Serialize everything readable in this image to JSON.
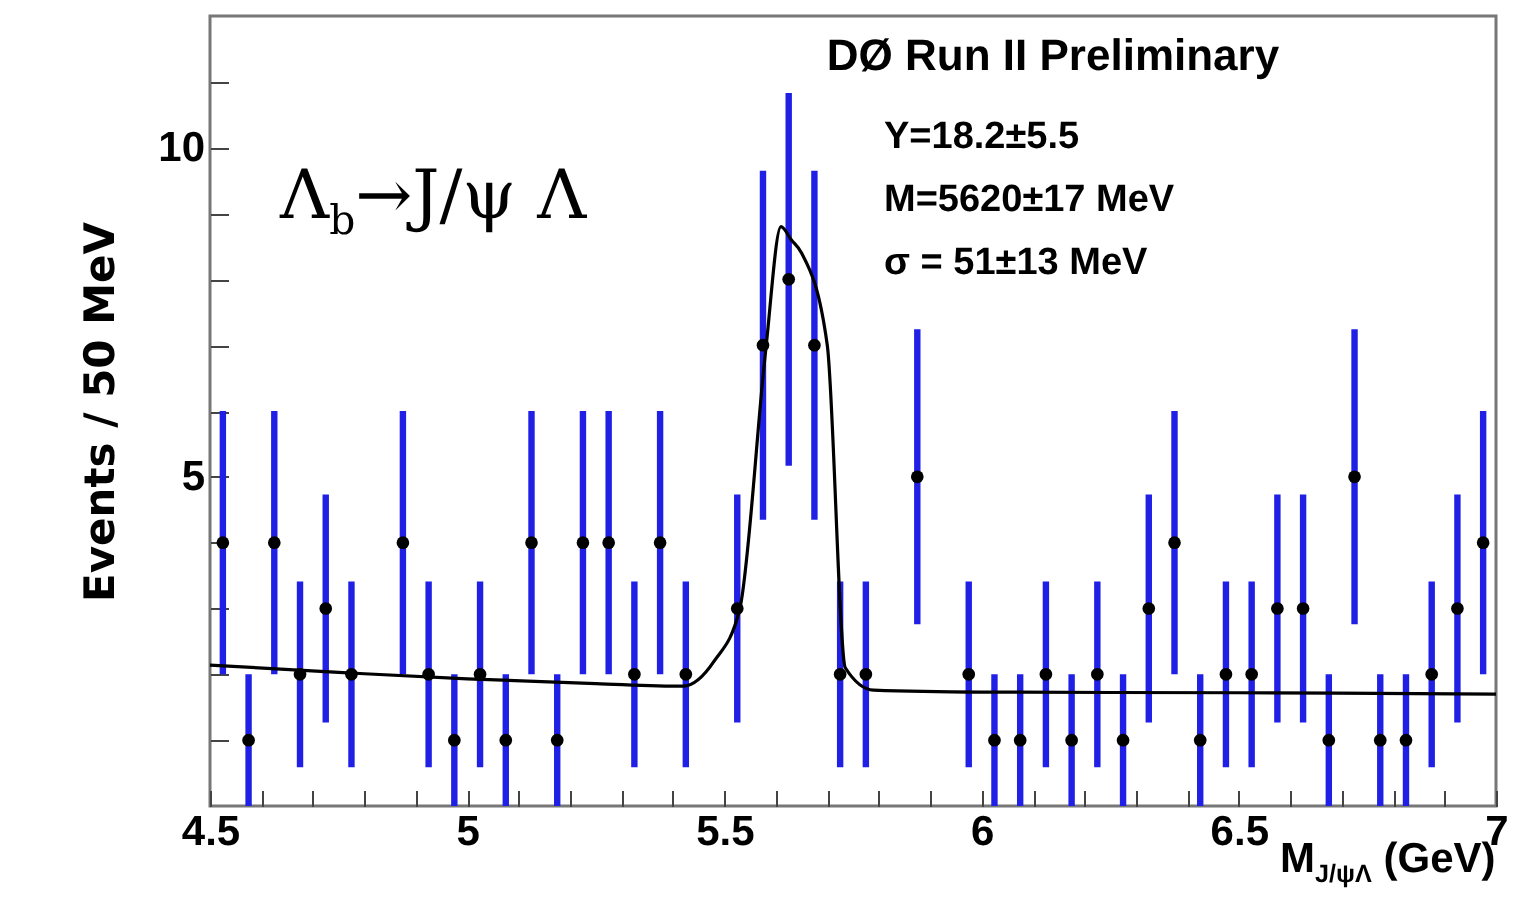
{
  "chart_data": {
    "type": "scatter",
    "title": "DØ Run II Preliminary",
    "xlabel": "M$_{J/ψΛ}$ (GeV)",
    "ylabel": "Events / 50 MeV",
    "annotations": [
      "Λ$_{b}$→J/ψ Λ",
      "Y=18.2±5.5",
      "M=5620±17 MeV",
      "σ = 51±13 MeV"
    ],
    "xlim": [
      4.5,
      7
    ],
    "ylim": [
      0,
      12
    ],
    "xticks": [
      4.5,
      {
        "value": 4.6,
        "label": null
      },
      {
        "value": 4.7,
        "label": null
      },
      {
        "value": 4.8,
        "label": null
      },
      {
        "value": 4.9,
        "label": null
      },
      5,
      {
        "value": 5.1,
        "label": null
      },
      {
        "value": 5.2,
        "label": null
      },
      {
        "value": 5.3,
        "label": null
      },
      {
        "value": 5.4,
        "label": null
      },
      5.5,
      {
        "value": 5.6,
        "label": null
      },
      {
        "value": 5.7,
        "label": null
      },
      {
        "value": 5.8,
        "label": null
      },
      {
        "value": 5.9,
        "label": null
      },
      6,
      {
        "value": 6.1,
        "label": null
      },
      {
        "value": 6.2,
        "label": null
      },
      {
        "value": 6.3,
        "label": null
      },
      {
        "value": 6.4,
        "label": null
      },
      6.5,
      {
        "value": 6.6,
        "label": null
      },
      {
        "value": 6.7,
        "label": null
      },
      {
        "value": 6.8,
        "label": null
      },
      {
        "value": 6.9,
        "label": null
      },
      7
    ],
    "yticks": [
      {
        "value": 1,
        "label": null
      },
      {
        "value": 2,
        "label": null
      },
      {
        "value": 3,
        "label": null
      },
      {
        "value": 4,
        "label": null
      },
      5,
      {
        "value": 6,
        "label": null
      },
      {
        "value": 7,
        "label": null
      },
      {
        "value": 8,
        "label": null
      },
      {
        "value": 9,
        "label": null
      },
      10,
      {
        "value": 11,
        "label": null
      }
    ],
    "series": [
      {
        "type": "scatter",
        "marker": "circle",
        "color": "#000000",
        "x": [
          4.525,
          4.575,
          4.625,
          4.675,
          4.725,
          4.775,
          4.825,
          4.875,
          4.925,
          4.975,
          5.025,
          5.075,
          5.125,
          5.175,
          5.225,
          5.275,
          5.325,
          5.375,
          5.425,
          5.475,
          5.525,
          5.575,
          5.625,
          5.675,
          5.725,
          5.775,
          5.825,
          5.875,
          5.925,
          5.975,
          6.025,
          6.075,
          6.125,
          6.175,
          6.225,
          6.275,
          6.325,
          6.375,
          6.425,
          6.475,
          6.525,
          6.575,
          6.625,
          6.675,
          6.725,
          6.775,
          6.825,
          6.875,
          6.925,
          6.975
        ],
        "values": [
          4,
          1,
          4,
          2,
          3,
          2,
          null,
          4,
          2,
          1,
          2,
          1,
          4,
          1,
          4,
          4,
          2,
          4,
          2,
          null,
          3,
          7,
          8,
          7,
          2,
          2,
          null,
          5,
          null,
          2,
          1,
          1,
          2,
          1,
          2,
          1,
          3,
          4,
          1,
          2,
          2,
          3,
          3,
          1,
          5,
          1,
          1,
          2,
          3,
          4
        ],
        "errors": [
          2,
          1,
          2,
          1.41,
          1.73,
          1.41,
          null,
          2,
          1.41,
          1,
          1.41,
          1,
          2,
          1,
          2,
          2,
          1.41,
          2,
          1.41,
          null,
          1.73,
          2.65,
          2.83,
          2.65,
          1.41,
          1.41,
          null,
          2.24,
          null,
          1.41,
          1,
          1,
          1.41,
          1,
          1.41,
          1,
          1.73,
          2,
          1,
          1.41,
          1.41,
          1.73,
          1.73,
          1,
          2.24,
          1,
          1,
          1.41,
          1.73,
          2
        ]
      },
      {
        "type": "line",
        "marker": "none",
        "color": "#000000",
        "x": [
          4.5,
          4.75,
          5.0,
          5.25,
          5.42,
          5.48,
          5.53,
          5.58,
          5.61,
          5.63,
          5.65,
          5.7,
          5.735,
          5.79,
          6.0,
          6.5,
          7.0
        ],
        "values": [
          2.14,
          2.03,
          1.93,
          1.86,
          1.82,
          2.2,
          3.0,
          6.9,
          8.8,
          8.6,
          8.4,
          7.0,
          2.1,
          1.76,
          1.73,
          1.72,
          1.7
        ]
      }
    ]
  }
}
